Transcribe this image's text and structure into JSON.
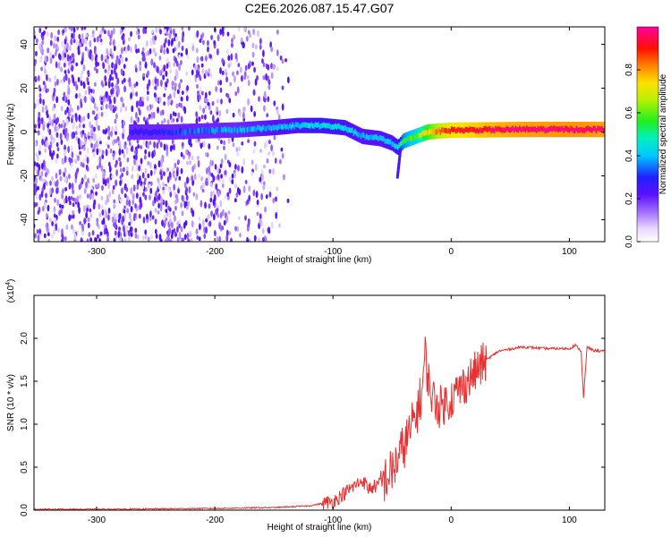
{
  "title": "C2E6.2026.087.15.47.G07",
  "chart_data": [
    {
      "type": "heatmap",
      "name": "spectrogram",
      "xlabel": "Height of straight line (km)",
      "ylabel": "Frequency (Hz)",
      "xlim": [
        -353,
        130
      ],
      "ylim": [
        -50,
        48
      ],
      "xticks": [
        -300,
        -200,
        -100,
        0,
        100
      ],
      "xtick_labels": [
        "-300",
        "-200",
        "-100",
        "0",
        "100"
      ],
      "yticks": [
        -40,
        -20,
        0,
        20,
        40
      ],
      "ytick_labels": [
        "-40",
        "-20",
        "0",
        "20",
        "40"
      ],
      "colorbar": {
        "label": "Normalized spectral amplitude",
        "range": [
          0,
          1
        ],
        "ticks": [
          0.0,
          0.2,
          0.4,
          0.6,
          0.8
        ],
        "tick_labels": [
          "0.0",
          "0.2",
          "0.4",
          "0.6",
          "0.8"
        ]
      },
      "ridge": {
        "heights": [
          -270,
          -240,
          -210,
          -180,
          -150,
          -130,
          -110,
          -90,
          -75,
          -60,
          -50,
          -45,
          -40,
          -30,
          -20,
          -10,
          0,
          30,
          60,
          90,
          110,
          130
        ],
        "frequency": [
          0,
          0,
          0.5,
          1,
          2,
          3,
          3,
          2,
          -2,
          -3,
          -5,
          -7,
          -4,
          -2,
          0,
          0.5,
          0.8,
          1,
          1.2,
          1.2,
          1.2,
          1.2
        ],
        "amplitude": [
          0.25,
          0.3,
          0.35,
          0.38,
          0.4,
          0.42,
          0.44,
          0.42,
          0.4,
          0.4,
          0.42,
          0.45,
          0.55,
          0.6,
          0.75,
          0.85,
          0.9,
          0.95,
          0.97,
          0.98,
          0.98,
          0.97
        ]
      }
    },
    {
      "type": "line",
      "name": "snr",
      "xlabel": "Height of straight line (km)",
      "ylabel": "SNR (10 * v/v)",
      "scale_label": "(x10",
      "scale_exp": "4",
      "xlim": [
        -353,
        130
      ],
      "ylim": [
        0,
        2.5
      ],
      "xticks": [
        -300,
        -200,
        -100,
        0,
        100
      ],
      "xtick_labels": [
        "-300",
        "-200",
        "-100",
        "0",
        "100"
      ],
      "yticks": [
        0.0,
        0.5,
        1.0,
        1.5,
        2.0
      ],
      "ytick_labels": [
        "0.0",
        "0.5",
        "1.0",
        "1.5",
        "2.0"
      ],
      "color": "#e83030",
      "series": [
        {
          "name": "SNR",
          "x": [
            -353,
            -300,
            -250,
            -200,
            -150,
            -120,
            -100,
            -90,
            -80,
            -75,
            -70,
            -60,
            -50,
            -45,
            -40,
            -35,
            -30,
            -25,
            -22,
            -18,
            -15,
            -10,
            0,
            10,
            20,
            30,
            40,
            60,
            80,
            100,
            105,
            110,
            112,
            115,
            120,
            130
          ],
          "y": [
            0.01,
            0.01,
            0.015,
            0.02,
            0.03,
            0.05,
            0.1,
            0.2,
            0.3,
            0.35,
            0.25,
            0.3,
            0.45,
            0.6,
            0.75,
            0.9,
            1.1,
            1.35,
            1.8,
            1.4,
            1.3,
            1.2,
            1.3,
            1.45,
            1.6,
            1.75,
            1.85,
            1.9,
            1.88,
            1.88,
            1.92,
            1.85,
            1.3,
            1.9,
            1.86,
            1.85
          ]
        }
      ]
    }
  ]
}
